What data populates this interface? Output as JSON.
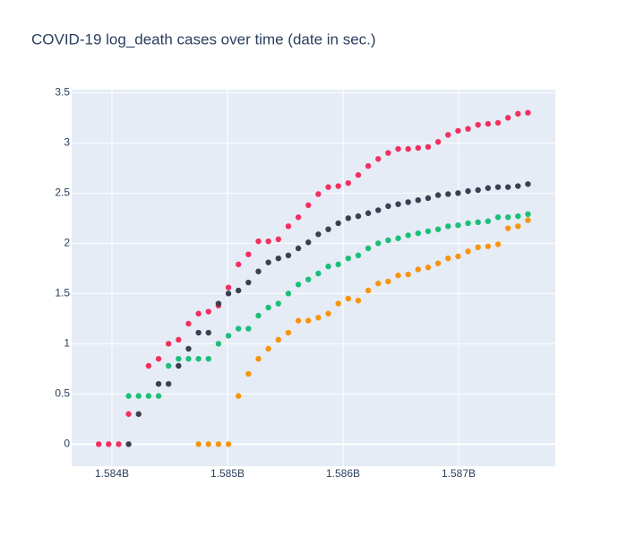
{
  "chart_data": {
    "type": "scatter",
    "title": "COVID-19 log_death cases over time (date in sec.)",
    "x": [
      1583884800,
      1583971200,
      1584057600,
      1584144000,
      1584230400,
      1584316800,
      1584403200,
      1584489600,
      1584576000,
      1584662400,
      1584748800,
      1584835200,
      1584921600,
      1585008000,
      1585094400,
      1585180800,
      1585267200,
      1585353600,
      1585440000,
      1585526400,
      1585612800,
      1585699200,
      1585785600,
      1585872000,
      1585958400,
      1586044800,
      1586131200,
      1586217600,
      1586304000,
      1586390400,
      1586476800,
      1586563200,
      1586649600,
      1586736000,
      1586822400,
      1586908800,
      1586995200,
      1587081600,
      1587168000,
      1587254400,
      1587340800,
      1587427200,
      1587513600,
      1587600000
    ],
    "series": [
      {
        "color": "#f2305f",
        "values": [
          0,
          0,
          0,
          0.3,
          null,
          0.78,
          0.85,
          1.0,
          1.04,
          1.2,
          1.3,
          1.32,
          1.38,
          1.56,
          1.79,
          1.89,
          2.02,
          2.02,
          2.04,
          2.17,
          2.26,
          2.38,
          2.49,
          2.56,
          2.57,
          2.6,
          2.68,
          2.77,
          2.84,
          2.9,
          2.94,
          2.94,
          2.95,
          2.96,
          3.01,
          3.08,
          3.12,
          3.14,
          3.18,
          3.19,
          3.2,
          3.25,
          3.29,
          3.3
        ]
      },
      {
        "color": "#3b3f4e",
        "values": [
          null,
          null,
          null,
          0,
          0.3,
          null,
          0.6,
          0.6,
          0.78,
          0.95,
          1.11,
          1.11,
          1.4,
          1.5,
          1.53,
          1.61,
          1.72,
          1.81,
          1.85,
          1.88,
          1.95,
          2.01,
          2.09,
          2.14,
          2.2,
          2.25,
          2.27,
          2.3,
          2.33,
          2.37,
          2.39,
          2.41,
          2.43,
          2.45,
          2.48,
          2.49,
          2.5,
          2.52,
          2.53,
          2.55,
          2.56,
          2.56,
          2.57,
          2.59
        ]
      },
      {
        "color": "#1cbe78",
        "values": [
          null,
          null,
          null,
          0.48,
          0.48,
          0.48,
          0.48,
          0.78,
          0.85,
          0.85,
          0.85,
          0.85,
          1.0,
          1.08,
          1.15,
          1.15,
          1.28,
          1.36,
          1.4,
          1.5,
          1.59,
          1.64,
          1.7,
          1.77,
          1.79,
          1.85,
          1.88,
          1.95,
          2.0,
          2.03,
          2.05,
          2.08,
          2.1,
          2.12,
          2.14,
          2.17,
          2.18,
          2.2,
          2.21,
          2.22,
          2.26,
          2.26,
          2.27,
          2.29
        ]
      },
      {
        "color": "#f7950f",
        "values": [
          null,
          null,
          null,
          null,
          null,
          null,
          null,
          null,
          null,
          null,
          0,
          0,
          0,
          0,
          0.48,
          0.7,
          0.85,
          0.95,
          1.04,
          1.11,
          1.23,
          1.23,
          1.26,
          1.3,
          1.4,
          1.45,
          1.43,
          1.53,
          1.6,
          1.62,
          1.68,
          1.69,
          1.74,
          1.76,
          1.8,
          1.85,
          1.87,
          1.92,
          1.96,
          1.97,
          1.99,
          2.15,
          2.17,
          2.23
        ]
      }
    ],
    "xlim": [
      1583651000,
      1587837000
    ],
    "ylim": [
      -0.22,
      3.53
    ],
    "xticks": [
      {
        "value": 1584000000,
        "label": "1.584B"
      },
      {
        "value": 1585000000,
        "label": "1.585B"
      },
      {
        "value": 1586000000,
        "label": "1.586B"
      },
      {
        "value": 1587000000,
        "label": "1.587B"
      }
    ],
    "yticks": [
      0,
      0.5,
      1,
      1.5,
      2,
      2.5,
      3,
      3.5
    ],
    "grid": true
  }
}
